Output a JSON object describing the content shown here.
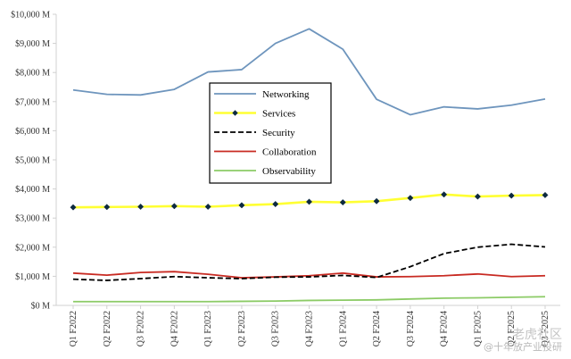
{
  "chart_data": {
    "type": "line",
    "categories": [
      "Q1 F2022",
      "Q2 F2022",
      "Q3 F2022",
      "Q4 F2022",
      "Q1 F2023",
      "Q2 F2023",
      "Q3 F2023",
      "Q4 F2023",
      "Q1 F2024",
      "Q2 F2024",
      "Q3 F2024",
      "Q4 F2024",
      "Q1 F2025",
      "Q2 F2025",
      "Q3 F2025"
    ],
    "y_ticks": [
      "$0 M",
      "$1,000 M",
      "$2,000 M",
      "$3,000 M",
      "$4,000 M",
      "$5,000 M",
      "$6,000 M",
      "$7,000 M",
      "$8,000 M",
      "$9,000 M",
      "$10,000 M"
    ],
    "ylim": [
      0,
      10000
    ],
    "grid": false,
    "legend_position": "center-left",
    "series": [
      {
        "name": "Networking",
        "color": "#6e95bd",
        "style": "solid",
        "values": [
          7400,
          7250,
          7230,
          7420,
          8020,
          8100,
          9000,
          9500,
          8800,
          7080,
          6550,
          6820,
          6750,
          6880,
          7090
        ]
      },
      {
        "name": "Services",
        "color": "#ffff33",
        "style": "solid-diamond",
        "values": [
          3370,
          3380,
          3390,
          3410,
          3390,
          3440,
          3480,
          3560,
          3540,
          3580,
          3690,
          3810,
          3740,
          3770,
          3790
        ]
      },
      {
        "name": "Security",
        "color": "#000000",
        "style": "dashed",
        "values": [
          900,
          860,
          920,
          990,
          950,
          920,
          970,
          980,
          1030,
          960,
          1330,
          1780,
          2000,
          2100,
          2010
        ]
      },
      {
        "name": "Collaboration",
        "color": "#c82a22",
        "style": "solid",
        "values": [
          1110,
          1040,
          1130,
          1160,
          1070,
          950,
          980,
          1020,
          1110,
          980,
          990,
          1020,
          1080,
          990,
          1020
        ]
      },
      {
        "name": "Observability",
        "color": "#8ccb66",
        "style": "solid",
        "values": [
          130,
          130,
          130,
          130,
          130,
          140,
          150,
          170,
          180,
          190,
          220,
          250,
          260,
          280,
          300
        ]
      }
    ]
  },
  "watermark": {
    "line1": "老虎社区",
    "line2": "@十年放产业投研"
  }
}
